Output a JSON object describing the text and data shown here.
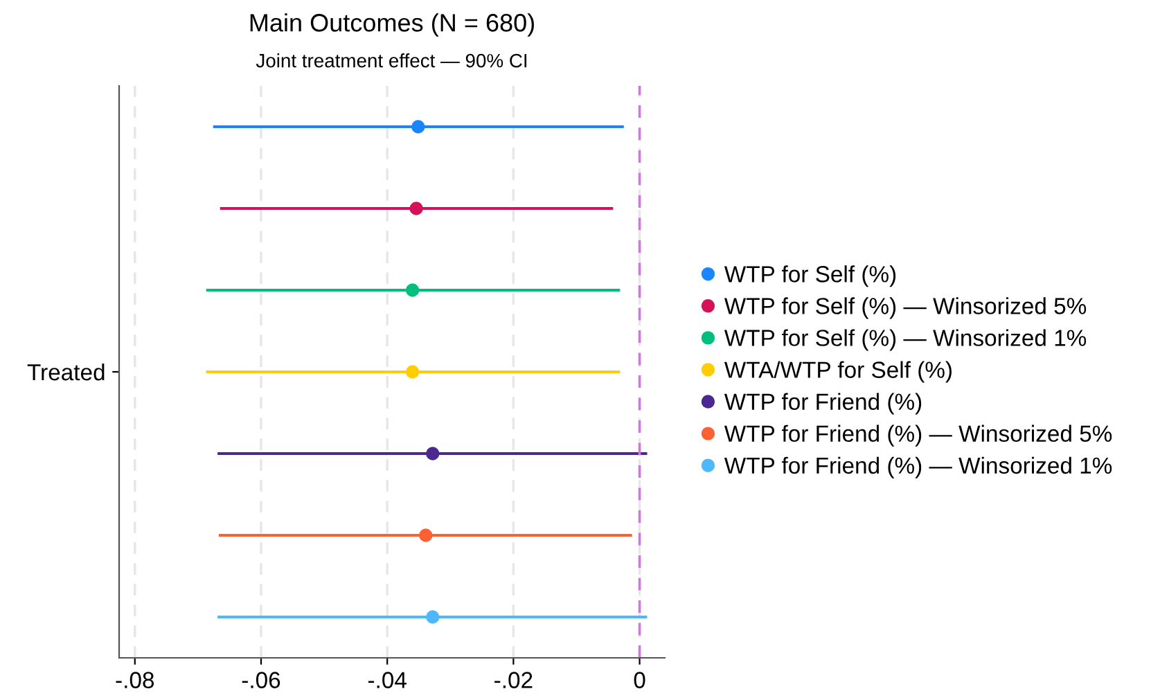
{
  "chart_data": {
    "type": "scatter",
    "orientation": "horizontal",
    "title": "Main Outcomes (N = 680)",
    "subtitle": "Joint treatment effect — 90% CI",
    "categories": [
      null,
      null,
      null,
      "Treated",
      null,
      null,
      null
    ],
    "xlim": [
      -0.0825,
      0.004
    ],
    "xticks": [
      {
        "value": -0.08,
        "label": "-.08"
      },
      {
        "value": -0.06,
        "label": "-.06"
      },
      {
        "value": -0.04,
        "label": "-.04"
      },
      {
        "value": -0.02,
        "label": "-.02"
      },
      {
        "value": 0,
        "label": "0"
      }
    ],
    "grid": "x",
    "legend": "right",
    "marker": "circle",
    "ref_lines": [
      {
        "axis": "x",
        "value": 0,
        "color": "#c77dd6",
        "line_style": "dashed"
      }
    ],
    "series": [
      {
        "name": "WTP for Self (%)",
        "color": "#1a85ff",
        "values": [
          -0.0351,
          null,
          null,
          null,
          null,
          null,
          null
        ],
        "errors": [
          [
            -0.0676,
            -0.0025
          ],
          null,
          null,
          null,
          null,
          null,
          null
        ]
      },
      {
        "name": "WTP for Self (%) — Winsorized 5%",
        "color": "#d41159",
        "values": [
          null,
          -0.0354,
          null,
          null,
          null,
          null,
          null
        ],
        "errors": [
          null,
          [
            -0.0665,
            -0.0042
          ],
          null,
          null,
          null,
          null,
          null
        ]
      },
      {
        "name": "WTP for Self (%) — Winsorized 1%",
        "color": "#00bf7d",
        "values": [
          null,
          null,
          -0.036,
          null,
          null,
          null,
          null
        ],
        "errors": [
          null,
          null,
          [
            -0.0687,
            -0.0031
          ],
          null,
          null,
          null,
          null
        ]
      },
      {
        "name": "WTA/WTP for Self (%)",
        "color": "#ffcd00",
        "values": [
          null,
          null,
          null,
          -0.036,
          null,
          null,
          null
        ],
        "errors": [
          null,
          null,
          null,
          [
            -0.0687,
            -0.0031
          ],
          null,
          null,
          null
        ]
      },
      {
        "name": "WTP for Friend (%)",
        "color": "#4b2991",
        "values": [
          null,
          null,
          null,
          null,
          -0.0328,
          null,
          null
        ],
        "errors": [
          null,
          null,
          null,
          null,
          [
            -0.0669,
            0.0012
          ],
          null,
          null
        ]
      },
      {
        "name": "WTP for Friend (%) — Winsorized 5%",
        "color": "#ff6133",
        "values": [
          null,
          null,
          null,
          null,
          null,
          -0.0339,
          null
        ],
        "errors": [
          null,
          null,
          null,
          null,
          null,
          [
            -0.0667,
            -0.0012
          ],
          null
        ]
      },
      {
        "name": "WTP for Friend (%) — Winsorized 1%",
        "color": "#4db8ff",
        "values": [
          null,
          null,
          null,
          null,
          null,
          null,
          -0.0328
        ],
        "errors": [
          null,
          null,
          null,
          null,
          null,
          null,
          [
            -0.0669,
            0.0012
          ]
        ]
      }
    ]
  }
}
